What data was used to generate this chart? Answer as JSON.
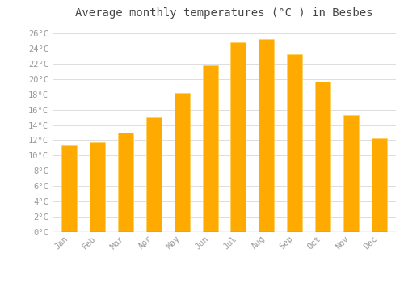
{
  "title": "Average monthly temperatures (°C ) in Besbes",
  "months": [
    "Jan",
    "Feb",
    "Mar",
    "Apr",
    "May",
    "Jun",
    "Jul",
    "Aug",
    "Sep",
    "Oct",
    "Nov",
    "Dec"
  ],
  "values": [
    11.4,
    11.7,
    13.0,
    15.0,
    18.2,
    21.8,
    24.8,
    25.3,
    23.3,
    19.7,
    15.3,
    12.3
  ],
  "bar_color": "#FFAA00",
  "bar_color_light": "#FFD060",
  "background_color": "#FFFFFF",
  "plot_bg_color": "#FFFFFF",
  "grid_color": "#DDDDDD",
  "text_color": "#999999",
  "title_color": "#444444",
  "ylim": [
    0,
    27
  ],
  "ytick_step": 2,
  "title_fontsize": 10,
  "tick_fontsize": 7.5
}
